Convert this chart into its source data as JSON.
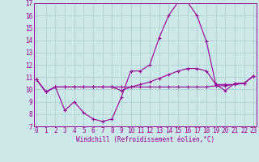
{
  "xlabel": "Windchill (Refroidissement éolien,°C)",
  "bg_color": "#cce8e8",
  "grid_color": "#aacece",
  "line_color": "#990099",
  "x_hours": [
    0,
    1,
    2,
    3,
    4,
    5,
    6,
    7,
    8,
    9,
    10,
    11,
    12,
    13,
    14,
    15,
    16,
    17,
    18,
    19,
    20,
    21,
    22,
    23
  ],
  "line1": [
    10.8,
    9.8,
    10.2,
    8.3,
    9.0,
    8.1,
    7.6,
    7.4,
    7.6,
    9.4,
    11.5,
    11.5,
    12.0,
    14.2,
    16.0,
    17.1,
    17.1,
    16.0,
    13.9,
    10.4,
    10.4,
    10.4,
    10.5,
    11.1
  ],
  "line2": [
    10.8,
    9.8,
    10.2,
    10.2,
    10.2,
    10.2,
    10.2,
    10.2,
    10.2,
    10.2,
    10.2,
    10.2,
    10.2,
    10.2,
    10.2,
    10.2,
    10.2,
    10.2,
    10.2,
    10.3,
    10.3,
    10.4,
    10.5,
    11.1
  ],
  "line3": [
    10.8,
    9.8,
    10.2,
    10.2,
    10.2,
    10.2,
    10.2,
    10.2,
    10.2,
    9.9,
    10.2,
    10.4,
    10.6,
    10.9,
    11.2,
    11.5,
    11.7,
    11.7,
    11.5,
    10.4,
    9.9,
    10.5,
    10.5,
    11.1
  ],
  "ylim": [
    7,
    17
  ],
  "xlim": [
    0,
    23
  ],
  "yticks": [
    7,
    8,
    9,
    10,
    11,
    12,
    13,
    14,
    15,
    16,
    17
  ],
  "xticks": [
    0,
    1,
    2,
    3,
    4,
    5,
    6,
    7,
    8,
    9,
    10,
    11,
    12,
    13,
    14,
    15,
    16,
    17,
    18,
    19,
    20,
    21,
    22,
    23
  ],
  "tick_fontsize": 5.5,
  "xlabel_fontsize": 5.5,
  "marker": "+",
  "markersize": 3,
  "linewidth": 0.8
}
